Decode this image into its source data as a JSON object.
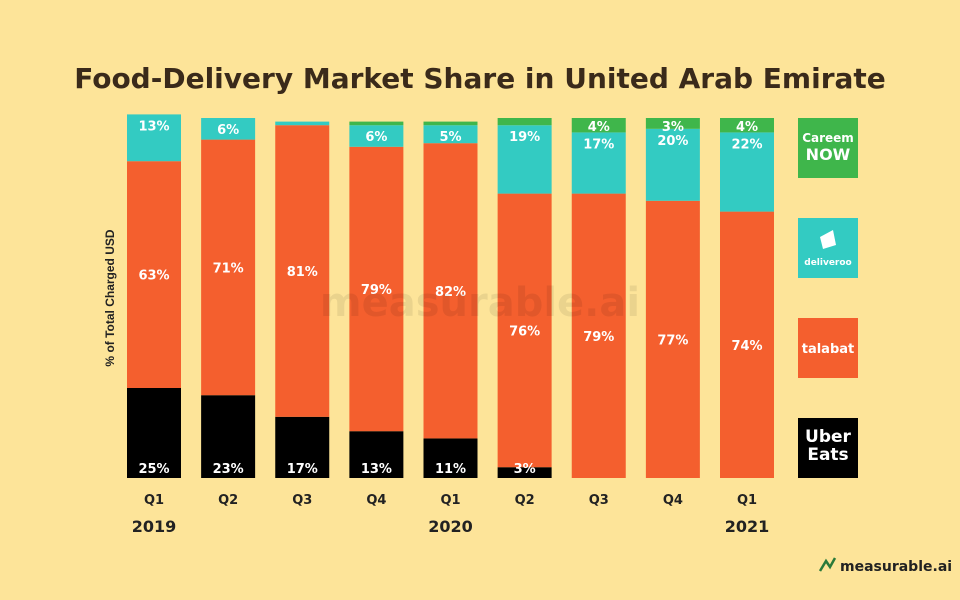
{
  "chart_data": {
    "type": "bar",
    "stacked": true,
    "title": "Food-Delivery Market Share in United Arab Emirate",
    "ylabel": "% of Total Charged USD",
    "ylim": [
      0,
      100
    ],
    "categories": [
      "Q1",
      "Q2",
      "Q3",
      "Q4",
      "Q1",
      "Q2",
      "Q3",
      "Q4",
      "Q1"
    ],
    "year_labels": [
      {
        "label": "2019",
        "index": 0
      },
      {
        "label": "2020",
        "index": 4
      },
      {
        "label": "2021",
        "index": 8
      }
    ],
    "series": [
      {
        "key": "ubereats",
        "color": "#000000",
        "values": [
          25,
          23,
          17,
          13,
          11,
          3,
          0,
          0,
          0
        ]
      },
      {
        "key": "talabat",
        "color": "#f45f2e",
        "values": [
          63,
          71,
          81,
          79,
          82,
          76,
          79,
          77,
          74
        ]
      },
      {
        "key": "deliveroo",
        "color": "#33cbc2",
        "values": [
          13,
          6,
          1,
          6,
          5,
          19,
          17,
          20,
          22
        ]
      },
      {
        "key": "careem",
        "color": "#3fb64b",
        "values": [
          0,
          0,
          0,
          1,
          1,
          2,
          4,
          3,
          4
        ]
      }
    ],
    "segment_labels": [
      [
        "25%",
        "63%",
        "13%",
        ""
      ],
      [
        "23%",
        "71%",
        "6%",
        ""
      ],
      [
        "17%",
        "81%",
        "",
        ""
      ],
      [
        "13%",
        "79%",
        "6%",
        ""
      ],
      [
        "11%",
        "82%",
        "5%",
        ""
      ],
      [
        "3%",
        "76%",
        "19%",
        ""
      ],
      [
        "",
        "79%",
        "17%",
        "4%"
      ],
      [
        "",
        "77%",
        "20%",
        "3%"
      ],
      [
        "",
        "74%",
        "22%",
        "4%"
      ]
    ],
    "legend": [
      {
        "name": "Careem NOW",
        "text": [
          "Careem",
          "NOW"
        ],
        "color": "#3fb64b"
      },
      {
        "name": "deliveroo",
        "text": [
          "deliveroo"
        ],
        "color": "#33cbc2"
      },
      {
        "name": "talabat",
        "text": [
          "talabat"
        ],
        "color": "#f45f2e"
      },
      {
        "name": "Uber Eats",
        "text": [
          "Uber",
          "Eats"
        ],
        "color": "#000000"
      }
    ]
  },
  "watermark": "measurable.ai",
  "footer_brand": "measurable.ai"
}
